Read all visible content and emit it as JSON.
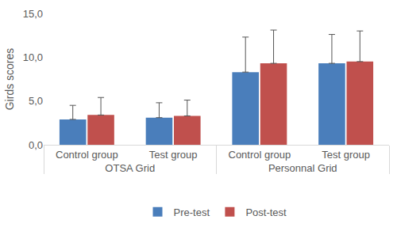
{
  "chart_data": {
    "type": "bar",
    "y_label": "Girds scores",
    "categories": [
      "Control group",
      "Test group",
      "Control group",
      "Test group"
    ],
    "category_groups": [
      "OTSA Grid",
      "OTSA Grid",
      "Personnal Grid",
      "Personnal Grid"
    ],
    "series": [
      {
        "name": "Pre-test",
        "color": "#4a7ebb",
        "values": [
          2.9,
          3.1,
          8.3,
          9.3
        ],
        "errors": [
          1.6,
          1.7,
          4.0,
          3.3
        ]
      },
      {
        "name": "Post-test",
        "color": "#c0504d",
        "values": [
          3.4,
          3.3,
          9.3,
          9.5
        ],
        "errors": [
          2.0,
          1.8,
          3.8,
          3.5
        ]
      }
    ],
    "ylim": [
      0,
      15
    ],
    "yticks": [
      {
        "value": 0,
        "label": "0,0"
      },
      {
        "value": 5,
        "label": "5,0"
      },
      {
        "value": 10,
        "label": "10,0"
      },
      {
        "value": 15,
        "label": "15,0"
      }
    ],
    "grid": false,
    "legend": "bottom"
  }
}
